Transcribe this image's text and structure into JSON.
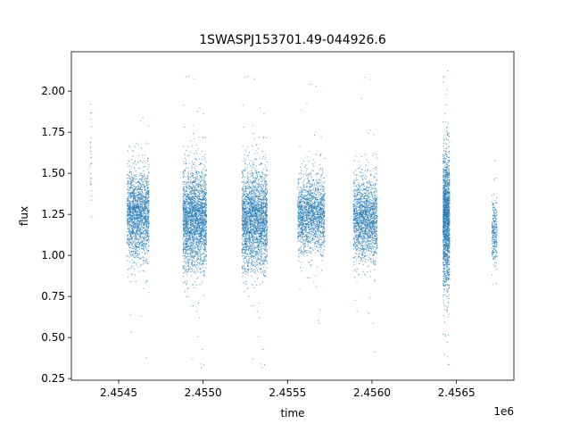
{
  "chart_data": {
    "type": "scatter",
    "title": "1SWASPJ153701.49-044926.6",
    "xlabel": "time",
    "ylabel": "flux",
    "x_offset_label": "1e6",
    "xlim": [
      2.45422,
      2.45684
    ],
    "ylim": [
      0.24,
      2.24
    ],
    "x_ticks": [
      2.4545,
      2.455,
      2.4555,
      2.456,
      2.4565
    ],
    "x_tick_labels": [
      "2.4545",
      "2.4550",
      "2.4555",
      "2.4560",
      "2.4565"
    ],
    "y_ticks": [
      0.25,
      0.5,
      0.75,
      1.0,
      1.25,
      1.5,
      1.75,
      2.0
    ],
    "y_tick_labels": [
      "0.25",
      "0.50",
      "0.75",
      "1.00",
      "1.25",
      "1.50",
      "1.75",
      "2.00"
    ],
    "grid": false,
    "marker_color": "#1f77b4",
    "series": [
      {
        "clusters": [
          {
            "x_start": 2.45433,
            "x_end": 2.45434,
            "y_center": 1.58,
            "y_spread": 0.2,
            "count": 30
          },
          {
            "x_start": 2.45455,
            "x_end": 2.45468,
            "y_center": 1.25,
            "y_spread": 0.13,
            "count": 1800
          },
          {
            "x_start": 2.45488,
            "x_end": 2.45502,
            "y_center": 1.22,
            "y_spread": 0.15,
            "count": 2400
          },
          {
            "x_start": 2.45523,
            "x_end": 2.45538,
            "y_center": 1.22,
            "y_spread": 0.15,
            "count": 2400
          },
          {
            "x_start": 2.45556,
            "x_end": 2.45572,
            "y_center": 1.25,
            "y_spread": 0.11,
            "count": 1700
          },
          {
            "x_start": 2.45589,
            "x_end": 2.45603,
            "y_center": 1.22,
            "y_spread": 0.12,
            "count": 1700
          },
          {
            "x_start": 2.45642,
            "x_end": 2.45646,
            "y_center": 1.22,
            "y_spread": 0.2,
            "count": 1600
          },
          {
            "x_start": 2.45671,
            "x_end": 2.45674,
            "y_center": 1.14,
            "y_spread": 0.1,
            "count": 260
          }
        ]
      }
    ]
  }
}
